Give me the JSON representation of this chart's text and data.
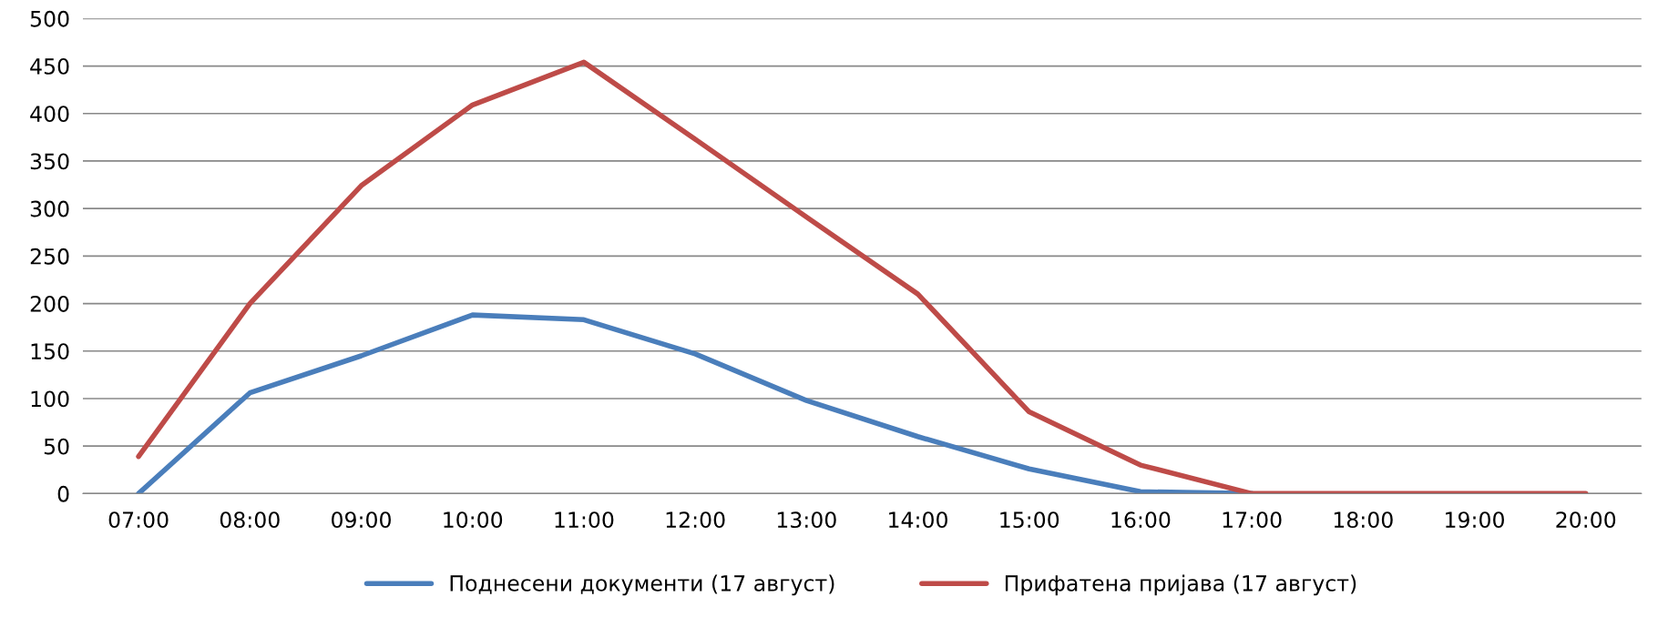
{
  "chart_data": {
    "type": "line",
    "categories": [
      "07:00",
      "08:00",
      "09:00",
      "10:00",
      "11:00",
      "12:00",
      "13:00",
      "14:00",
      "15:00",
      "16:00",
      "17:00",
      "18:00",
      "19:00",
      "20:00"
    ],
    "series": [
      {
        "name": "Поднесени документи (17 август)",
        "color": "#4a7ebb",
        "values": [
          0,
          106,
          145,
          188,
          183,
          147,
          98,
          60,
          26,
          2,
          0,
          null,
          null,
          null
        ]
      },
      {
        "name": "Прифатена пријава (17 август)",
        "color": "#be4b48",
        "values": [
          39,
          200,
          324,
          409,
          454,
          373,
          291,
          210,
          86,
          30,
          0,
          0,
          0,
          0
        ]
      }
    ],
    "ylim": [
      0,
      500
    ],
    "yticks": [
      0,
      50,
      100,
      150,
      200,
      250,
      300,
      350,
      400,
      450,
      500
    ],
    "grid": "y",
    "legend": "bottom",
    "marker": "none",
    "line_style": "solid"
  }
}
